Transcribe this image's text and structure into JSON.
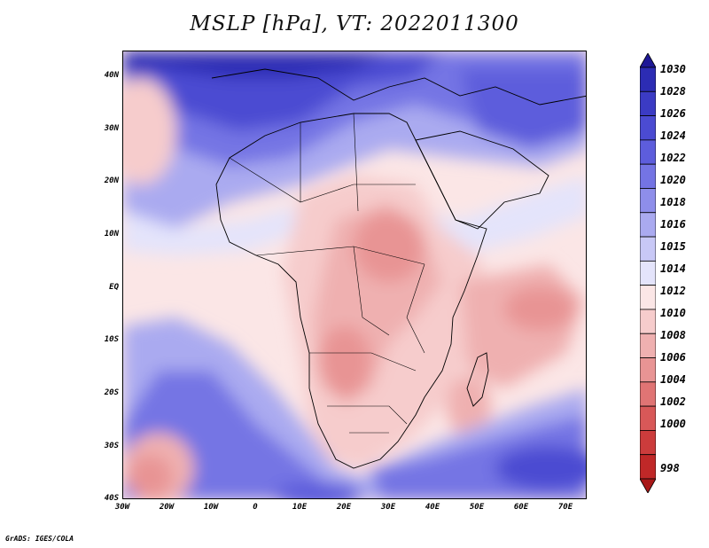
{
  "title": "MSLP [hPa], VT: 2022011300",
  "credit": "GrADS: IGES/COLA",
  "lat_labels": [
    "40N",
    "30N",
    "20N",
    "10N",
    "EQ",
    "10S",
    "20S",
    "30S",
    "40S"
  ],
  "lon_labels": [
    "30W",
    "20W",
    "10W",
    "0",
    "10E",
    "20E",
    "30E",
    "40E",
    "50E",
    "60E",
    "70E"
  ],
  "colorbar": {
    "labels": [
      "1030",
      "1028",
      "1026",
      "1024",
      "1022",
      "1020",
      "1018",
      "1016",
      "1015",
      "1014",
      "1012",
      "1010",
      "1008",
      "1006",
      "1004",
      "1002",
      "1000",
      "998"
    ],
    "colors": [
      "#1e1896",
      "#2c2cb4",
      "#3b3bc4",
      "#4b4bd2",
      "#5d5ddc",
      "#7474e4",
      "#8e8eea",
      "#aaaaf0",
      "#c8c8f6",
      "#e4e4fb",
      "#fbe6e6",
      "#f6cccc",
      "#efb0b0",
      "#e89494",
      "#e07474",
      "#d85858",
      "#cc3c3c",
      "#c02828",
      "#a81818"
    ]
  }
}
